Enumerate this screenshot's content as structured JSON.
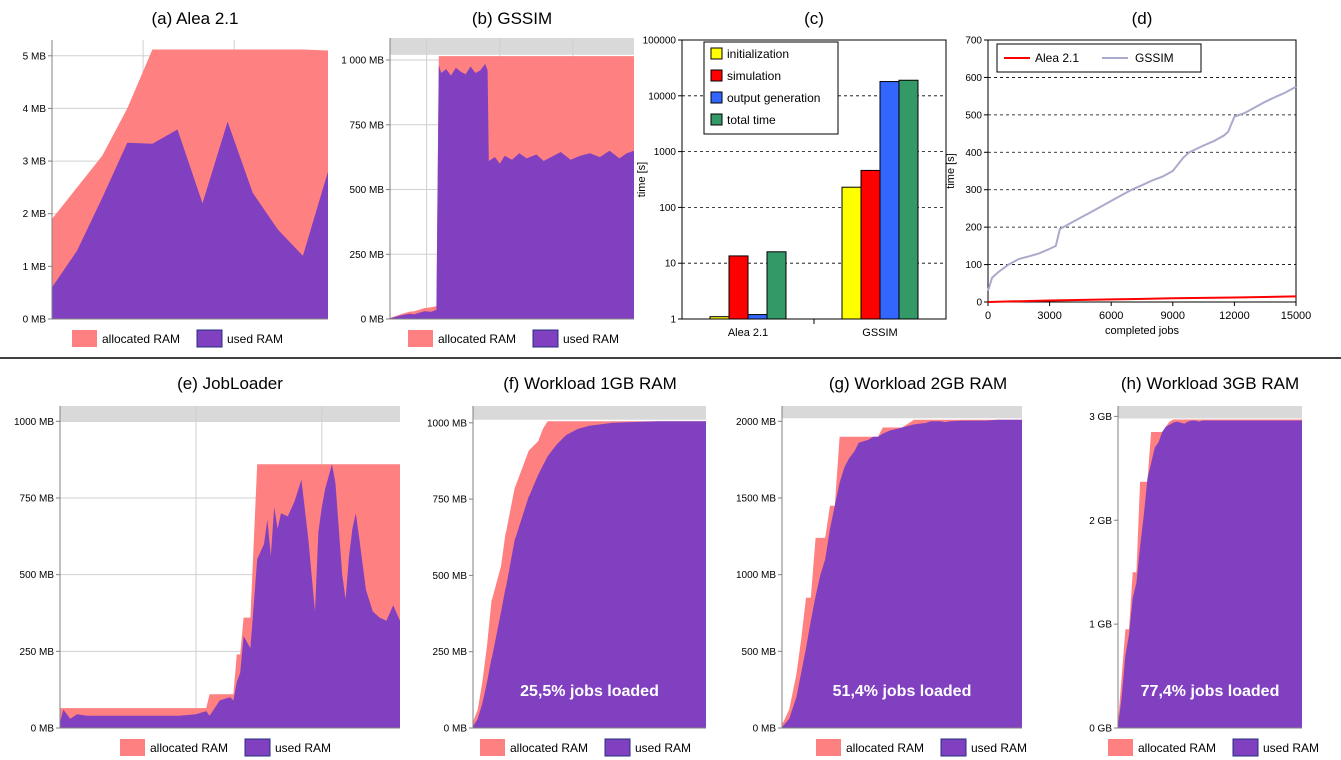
{
  "colors": {
    "allocated": "#ff8080",
    "used": "#8040c0",
    "cap": "#d9d9d9",
    "initialization": "#ffff00",
    "simulation": "#ff0000",
    "output_generation": "#3366ff",
    "total_time": "#339966",
    "alea_line": "#ff0000",
    "gssim_line": "#aaaacc"
  },
  "legend": {
    "allocated": "allocated RAM",
    "used": "used RAM"
  },
  "chart_data": [
    {
      "id": "a",
      "type": "area",
      "title": "(a) Alea 2.1",
      "ylim": [
        0,
        5.3
      ],
      "yticks": [
        0,
        1,
        2,
        3,
        4,
        5
      ],
      "ytick_labels": [
        "0 MB",
        "1 MB",
        "2 MB",
        "3 MB",
        "4 MB",
        "5 MB"
      ],
      "cap": null,
      "grid": true,
      "x": [
        0,
        1,
        2,
        3,
        4,
        5,
        6,
        7,
        8,
        9,
        10,
        11
      ],
      "allocated": [
        1.9,
        2.5,
        3.1,
        4.0,
        5.12,
        5.12,
        5.12,
        5.12,
        5.12,
        5.12,
        5.12,
        5.1
      ],
      "used": [
        0.6,
        1.3,
        2.3,
        3.35,
        3.33,
        3.6,
        2.2,
        3.75,
        2.4,
        1.7,
        1.2,
        2.8
      ],
      "legend": [
        "allocated RAM",
        "used RAM"
      ]
    },
    {
      "id": "b",
      "type": "area",
      "title": "(b) GSSIM",
      "ylim": [
        0,
        1085
      ],
      "yticks": [
        0,
        250,
        500,
        750,
        1000
      ],
      "ytick_labels": [
        "0 MB",
        "250 MB",
        "500 MB",
        "750 MB",
        "1 000 MB"
      ],
      "cap": 1020,
      "grid": true,
      "x": [
        0,
        2,
        5,
        8,
        10,
        12,
        14,
        17,
        19,
        20,
        21,
        23,
        25,
        27,
        29,
        31,
        33,
        35,
        37,
        39,
        40,
        40.5,
        43,
        45,
        47,
        50,
        53,
        56,
        60,
        63,
        66,
        70,
        74,
        78,
        82,
        86,
        90,
        94,
        97,
        100
      ],
      "allocated": [
        5,
        10,
        20,
        28,
        30,
        36,
        42,
        45,
        50,
        1015,
        1015,
        1015,
        1015,
        1015,
        1015,
        1015,
        1015,
        1015,
        1015,
        1015,
        1015,
        1015,
        1015,
        1015,
        1015,
        1015,
        1015,
        1015,
        1015,
        1015,
        1015,
        1015,
        1015,
        1015,
        1015,
        1015,
        1015,
        1015,
        1015,
        1015
      ],
      "used": [
        2,
        8,
        15,
        20,
        18,
        24,
        30,
        28,
        35,
        980,
        950,
        965,
        940,
        970,
        955,
        945,
        975,
        950,
        960,
        985,
        960,
        610,
        625,
        600,
        630,
        615,
        640,
        620,
        635,
        610,
        625,
        645,
        615,
        630,
        640,
        625,
        650,
        620,
        640,
        650
      ],
      "legend": [
        "allocated RAM",
        "used RAM"
      ]
    },
    {
      "id": "c",
      "type": "bar",
      "title": "(c)",
      "ylabel": "time [s]",
      "yscale": "log",
      "ylim": [
        1,
        100000
      ],
      "ytick_labels": [
        "1",
        "10",
        "100",
        "1000",
        "10000",
        "100000"
      ],
      "categories": [
        "Alea 2.1",
        "GSSIM"
      ],
      "series": [
        {
          "name": "initialization",
          "values": [
            1.1,
            230
          ]
        },
        {
          "name": "simulation",
          "values": [
            13.5,
            460
          ]
        },
        {
          "name": "output generation",
          "values": [
            1.2,
            18000
          ]
        },
        {
          "name": "total time",
          "values": [
            16,
            19000
          ]
        }
      ]
    },
    {
      "id": "d",
      "type": "line",
      "title": "(d)",
      "xlabel": "completed jobs",
      "ylabel": "time [s]",
      "xlim": [
        0,
        15000
      ],
      "ylim": [
        0,
        700
      ],
      "xtick_labels": [
        "0",
        "3000",
        "6000",
        "9000",
        "12000",
        "15000"
      ],
      "ytick_labels": [
        "0",
        "100",
        "200",
        "300",
        "400",
        "500",
        "600",
        "700"
      ],
      "series": [
        {
          "name": "Alea 2.1",
          "x": [
            0,
            3000,
            6000,
            9000,
            12000,
            15000
          ],
          "y": [
            0,
            4,
            7,
            10,
            12,
            15
          ]
        },
        {
          "name": "GSSIM",
          "x": [
            0,
            200,
            500,
            1000,
            1500,
            2000,
            2500,
            3000,
            3300,
            3500,
            4000,
            4500,
            5000,
            5500,
            6000,
            6500,
            7000,
            7500,
            8000,
            8500,
            9000,
            9500,
            9800,
            10000,
            10500,
            11000,
            11500,
            11700,
            12000,
            12500,
            13000,
            13500,
            14000,
            14500,
            15000
          ],
          "y": [
            30,
            65,
            80,
            100,
            115,
            122,
            130,
            142,
            150,
            195,
            210,
            225,
            240,
            255,
            270,
            285,
            300,
            312,
            325,
            335,
            350,
            385,
            400,
            405,
            418,
            430,
            445,
            455,
            495,
            505,
            520,
            535,
            548,
            560,
            575
          ]
        }
      ]
    },
    {
      "id": "e",
      "type": "area",
      "title": "(e) JobLoader",
      "ylim": [
        0,
        1050
      ],
      "yticks": [
        0,
        250,
        500,
        750,
        1000
      ],
      "ytick_labels": [
        "0 MB",
        "250 MB",
        "500 MB",
        "750 MB",
        "1000 MB"
      ],
      "cap": 1000,
      "grid": true,
      "x": [
        0,
        1,
        3,
        5,
        8,
        12,
        20,
        30,
        35,
        40,
        43,
        44,
        47,
        50,
        51,
        52,
        53,
        54,
        56,
        58,
        60,
        61,
        62,
        63,
        64,
        65,
        67,
        69,
        71,
        73,
        74,
        75,
        76,
        77,
        78,
        80,
        81,
        82,
        83,
        84,
        85,
        86,
        87,
        88,
        90,
        92,
        94,
        96,
        98,
        100
      ],
      "allocated": [
        65,
        65,
        65,
        65,
        65,
        65,
        65,
        65,
        65,
        65,
        65,
        110,
        110,
        110,
        110,
        240,
        240,
        360,
        360,
        860,
        860,
        860,
        860,
        860,
        860,
        860,
        860,
        860,
        860,
        860,
        860,
        860,
        860,
        860,
        860,
        860,
        860,
        860,
        860,
        860,
        860,
        860,
        860,
        860,
        860,
        860,
        860,
        860,
        860,
        860
      ],
      "used": [
        20,
        60,
        30,
        45,
        40,
        40,
        40,
        40,
        40,
        45,
        55,
        40,
        90,
        100,
        90,
        150,
        180,
        300,
        260,
        550,
        600,
        680,
        560,
        720,
        650,
        700,
        690,
        740,
        810,
        620,
        500,
        380,
        640,
        720,
        780,
        860,
        800,
        650,
        500,
        420,
        560,
        650,
        700,
        620,
        450,
        380,
        360,
        350,
        400,
        350
      ],
      "legend": [
        "allocated RAM",
        "used RAM"
      ]
    },
    {
      "id": "f",
      "type": "area",
      "title": "(f) Workload 1GB RAM",
      "ylim": [
        0,
        1055
      ],
      "yticks": [
        0,
        250,
        500,
        750,
        1000
      ],
      "ytick_labels": [
        "0 MB",
        "250 MB",
        "500 MB",
        "750 MB",
        "1000 MB"
      ],
      "cap": 1010,
      "grid": false,
      "x": [
        0,
        2,
        4,
        6,
        8,
        8.1,
        12,
        14,
        14.1,
        18,
        18.1,
        24,
        24.1,
        28,
        30,
        32,
        34,
        36,
        40,
        45,
        50,
        55,
        60,
        70,
        80,
        90,
        100
      ],
      "allocated": [
        20,
        60,
        150,
        270,
        420,
        420,
        530,
        640,
        640,
        790,
        790,
        910,
        910,
        940,
        980,
        1005,
        1005,
        1005,
        1005,
        1005,
        1005,
        1005,
        1005,
        1005,
        1005,
        1005,
        1005
      ],
      "used": [
        5,
        30,
        80,
        150,
        230,
        230,
        380,
        460,
        460,
        620,
        620,
        760,
        760,
        830,
        860,
        890,
        910,
        930,
        960,
        980,
        990,
        995,
        1000,
        1003,
        1005,
        1005,
        1005
      ],
      "annotation": "25,5% jobs loaded",
      "legend": [
        "allocated RAM",
        "used RAM"
      ]
    },
    {
      "id": "g",
      "type": "area",
      "title": "(g) Workload 2GB RAM",
      "ylim": [
        0,
        2100
      ],
      "yticks": [
        0,
        500,
        1000,
        1500,
        2000
      ],
      "ytick_labels": [
        "0 MB",
        "500 MB",
        "1000 MB",
        "1500 MB",
        "2000 MB"
      ],
      "cap": 2020,
      "grid": false,
      "x": [
        0,
        3,
        6,
        8,
        10,
        12,
        14,
        16,
        18,
        20,
        22,
        24,
        26,
        28,
        30,
        32,
        34,
        36,
        38,
        40,
        42,
        45,
        50,
        55,
        60,
        62,
        64,
        66,
        68,
        70,
        75,
        80,
        85,
        90,
        95,
        100
      ],
      "allocated": [
        20,
        120,
        350,
        580,
        850,
        850,
        1240,
        1240,
        1240,
        1450,
        1450,
        1900,
        1900,
        1900,
        1900,
        1900,
        1900,
        1900,
        1900,
        1900,
        1960,
        1960,
        1960,
        2010,
        2010,
        2010,
        2010,
        2010,
        2010,
        2010,
        2010,
        2010,
        2010,
        2010,
        2010,
        2010
      ],
      "used": [
        5,
        60,
        200,
        360,
        520,
        700,
        860,
        1000,
        1100,
        1300,
        1450,
        1600,
        1700,
        1760,
        1800,
        1860,
        1870,
        1880,
        1900,
        1900,
        1920,
        1940,
        1960,
        1980,
        1990,
        2000,
        2000,
        2000,
        1995,
        2000,
        2005,
        2005,
        2005,
        2010,
        2010,
        2010
      ],
      "annotation": "51,4% jobs loaded",
      "legend": [
        "allocated RAM",
        "used RAM"
      ]
    },
    {
      "id": "h",
      "type": "area",
      "title": "(h) Workload 3GB RAM",
      "ylim": [
        0,
        3.1
      ],
      "yticks": [
        0,
        1,
        2,
        3
      ],
      "ytick_labels": [
        "0 GB",
        "1 GB",
        "2 GB",
        "3 GB"
      ],
      "cap": 2.98,
      "grid": false,
      "x": [
        0,
        2,
        4,
        6,
        8,
        10,
        12,
        14,
        16,
        18,
        20,
        22,
        24,
        26,
        28,
        30,
        32,
        34,
        36,
        38,
        40,
        42,
        44,
        46,
        48,
        50,
        52,
        55,
        60,
        65,
        70,
        80,
        90,
        100
      ],
      "allocated": [
        0.05,
        0.5,
        0.95,
        0.95,
        1.5,
        1.5,
        2.37,
        2.37,
        2.37,
        2.85,
        2.85,
        2.85,
        2.85,
        2.9,
        2.95,
        2.97,
        2.97,
        2.97,
        2.97,
        2.97,
        2.97,
        2.97,
        2.97,
        2.97,
        2.97,
        2.97,
        2.97,
        2.97,
        2.97,
        2.97,
        2.97,
        2.97,
        2.97,
        2.97
      ],
      "used": [
        0.02,
        0.3,
        0.7,
        0.9,
        1.25,
        1.4,
        1.75,
        2.05,
        2.4,
        2.55,
        2.7,
        2.75,
        2.85,
        2.9,
        2.92,
        2.94,
        2.95,
        2.94,
        2.93,
        2.95,
        2.96,
        2.96,
        2.95,
        2.96,
        2.96,
        2.96,
        2.96,
        2.96,
        2.96,
        2.96,
        2.96,
        2.96,
        2.96,
        2.96
      ],
      "annotation": "77,4% jobs loaded",
      "legend": [
        "allocated RAM",
        "used RAM"
      ]
    }
  ]
}
